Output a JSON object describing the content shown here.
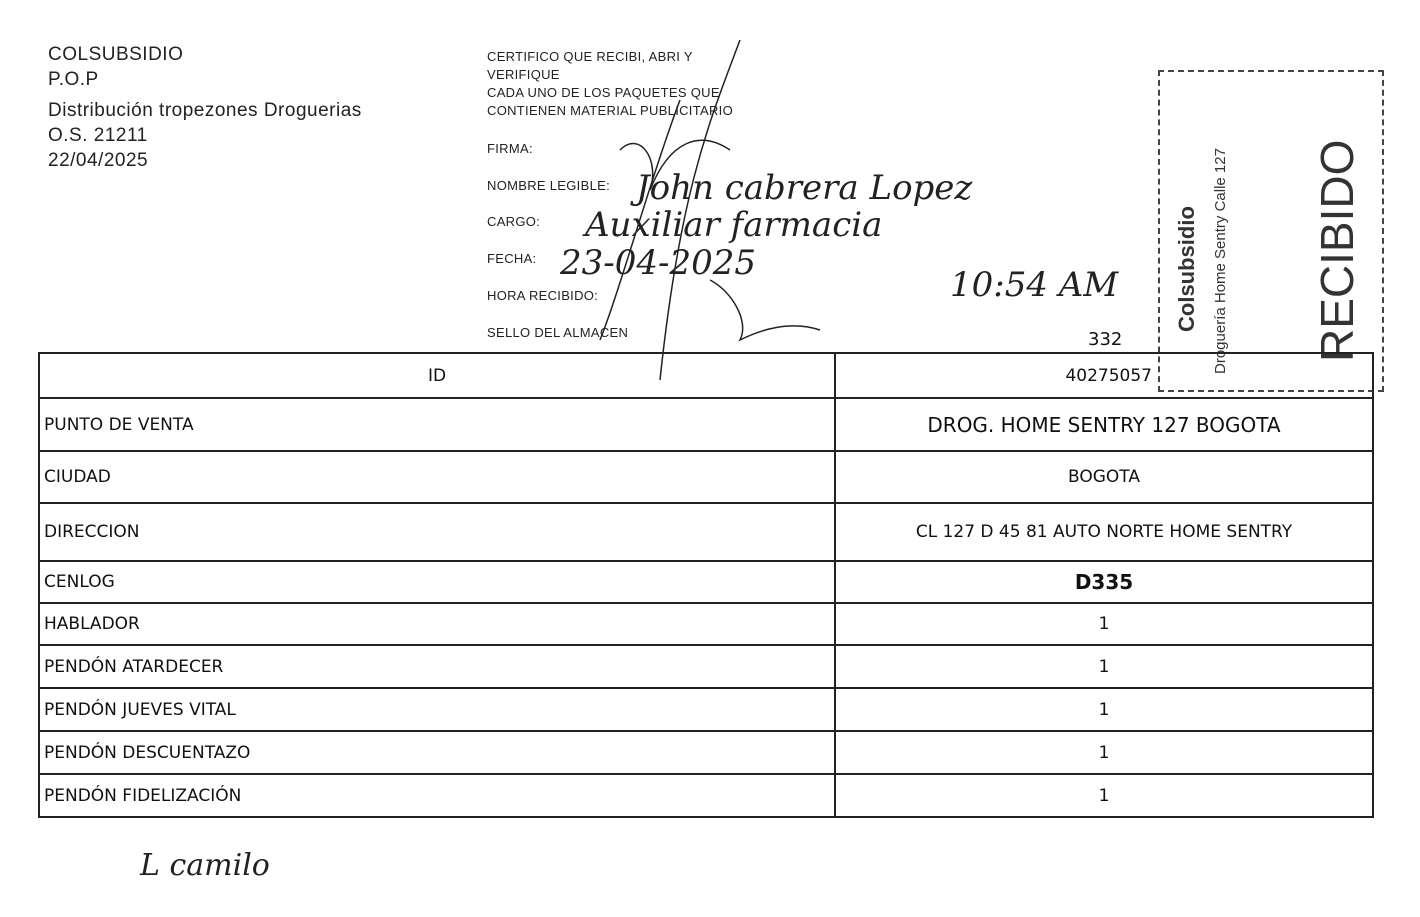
{
  "header": {
    "company": "COLSUBSIDIO",
    "line2": "P.O.P",
    "line3": "Distribución tropezones Droguerias",
    "order": "O.S. 21211",
    "date": "22/04/2025"
  },
  "certificate": {
    "text1": "CERTIFICO QUE RECIBI, ABRI Y",
    "text2": "VERIFIQUE",
    "text3": "CADA  UNO DE LOS PAQUETES QUE",
    "text4": "CONTIENEN MATERIAL PUBLICITARIO",
    "firma_label": "FIRMA:",
    "nombre_label": "NOMBRE LEGIBLE:",
    "nombre_value": "John cabrera Lopez",
    "cargo_label": "CARGO:",
    "cargo_value": "Auxiliar farmacia",
    "fecha_label": "FECHA:",
    "fecha_value": "23-04-2025",
    "hora_label": "HORA RECIBIDO:",
    "hora_value": "10:54 AM",
    "sello_label": "SELLO DEL ALMACEN",
    "number": "332"
  },
  "stamp": {
    "brand": "Colsubsidio",
    "store": "Droguería Home Sentry Calle 127",
    "status": "RECIBIDO"
  },
  "table": {
    "rows": [
      {
        "label": "ID",
        "value": "40275057"
      },
      {
        "label": "PUNTO DE VENTA",
        "value": "DROG. HOME SENTRY 127 BOGOTA"
      },
      {
        "label": "CIUDAD",
        "value": "BOGOTA"
      },
      {
        "label": "DIRECCION",
        "value": "CL 127 D 45 81 AUTO NORTE HOME SENTRY"
      },
      {
        "label": "CENLOG",
        "value": "D335"
      },
      {
        "label": "HABLADOR",
        "value": "1"
      },
      {
        "label": "PENDÓN  ATARDECER",
        "value": "1"
      },
      {
        "label": "PENDÓN JUEVES VITAL",
        "value": "1"
      },
      {
        "label": "PENDÓN DESCUENTAZO",
        "value": "1"
      },
      {
        "label": "PENDÓN FIDELIZACIÓN",
        "value": "1"
      }
    ]
  },
  "footer_note": "L camilo"
}
